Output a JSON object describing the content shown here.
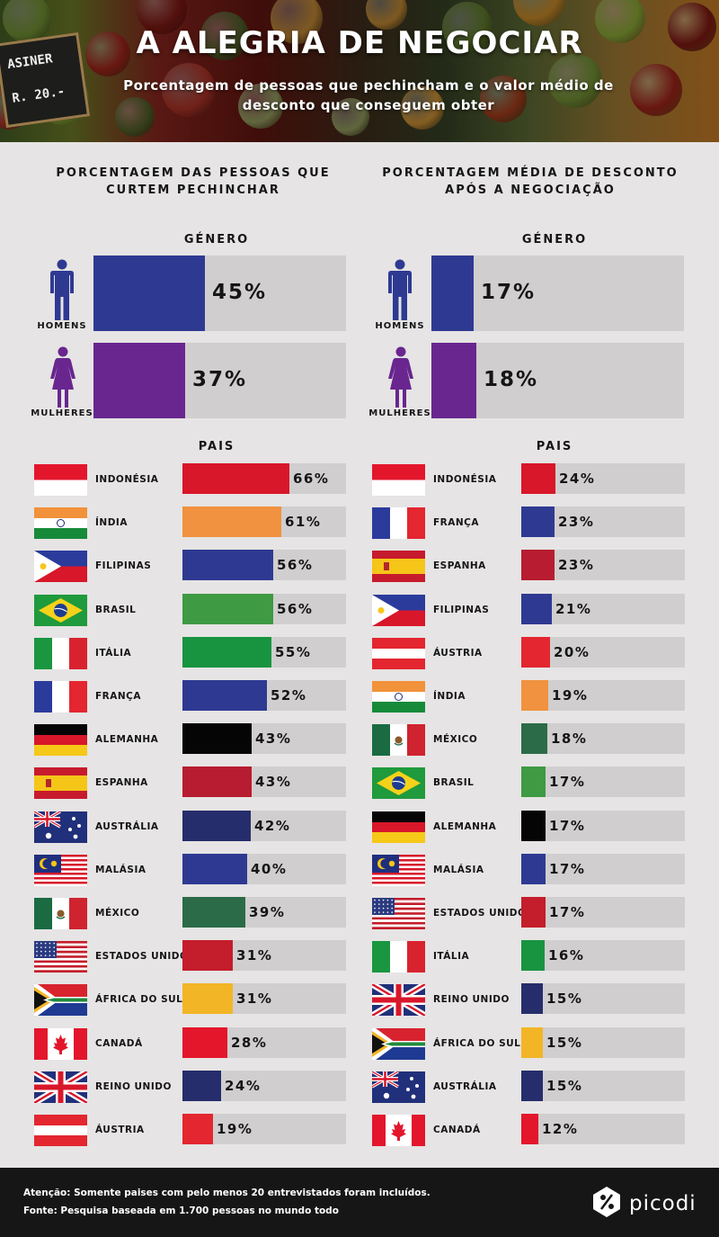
{
  "title": "A ALEGRIA DE NEGOCIAR",
  "subtitle": "Porcentagem de pessoas que pechincham e o valor médio de desconto que conseguem obter",
  "header_sign_text": [
    "ASINER",
    "R. 20.-"
  ],
  "colors": {
    "men": "#2e3a92",
    "women": "#69268f",
    "track": "#d0cece",
    "background": "#e6e4e4",
    "footer": "#161616"
  },
  "chart_data": [
    {
      "type": "bar",
      "title": "PORCENTAGEM DAS PESSOAS QUE CURTEM PECHINCHAR",
      "section_label": "GÉNERO",
      "unit": "%",
      "xlim": [
        0,
        100
      ],
      "categories": [
        "HOMENS",
        "MULHERES"
      ],
      "values": [
        45,
        37
      ],
      "value_labels": [
        "45%",
        "37%"
      ],
      "colors": [
        "#2e3a92",
        "#69268f"
      ],
      "icons": [
        "man-icon",
        "woman-icon"
      ]
    },
    {
      "type": "bar",
      "title": "PORCENTAGEM MÉDIA DE DESCONTO APÓS A NEGOCIAÇÃO",
      "section_label": "GÉNERO",
      "unit": "%",
      "xlim": [
        0,
        100
      ],
      "categories": [
        "HOMENS",
        "MULHERES"
      ],
      "values": [
        17,
        18
      ],
      "value_labels": [
        "17%",
        "18%"
      ],
      "colors": [
        "#2e3a92",
        "#69268f"
      ],
      "icons": [
        "man-icon",
        "woman-icon"
      ]
    },
    {
      "type": "bar",
      "title": "PORCENTAGEM DAS PESSOAS QUE CURTEM PECHINCHAR",
      "section_label": "PAIS",
      "unit": "%",
      "xlim": [
        0,
        100
      ],
      "rows": [
        {
          "country": "INDONÉSIA",
          "flag": "indonesia",
          "value": 66,
          "label": "66%",
          "color": "#d8172a"
        },
        {
          "country": "ÍNDIA",
          "flag": "india",
          "value": 61,
          "label": "61%",
          "color": "#f0923f"
        },
        {
          "country": "FILIPINAS",
          "flag": "philippines",
          "value": 56,
          "label": "56%",
          "color": "#2e3a92"
        },
        {
          "country": "BRASIL",
          "flag": "brazil",
          "value": 56,
          "label": "56%",
          "color": "#3e9a43"
        },
        {
          "country": "ITÁLIA",
          "flag": "italy",
          "value": 55,
          "label": "55%",
          "color": "#189440"
        },
        {
          "country": "FRANÇA",
          "flag": "france",
          "value": 52,
          "label": "52%",
          "color": "#2e3a92"
        },
        {
          "country": "ALEMANHA",
          "flag": "germany",
          "value": 43,
          "label": "43%",
          "color": "#050505"
        },
        {
          "country": "ESPANHA",
          "flag": "spain",
          "value": 43,
          "label": "43%",
          "color": "#b71c30"
        },
        {
          "country": "AUSTRÁLIA",
          "flag": "australia",
          "value": 42,
          "label": "42%",
          "color": "#262d6c"
        },
        {
          "country": "MALÁSIA",
          "flag": "malaysia",
          "value": 40,
          "label": "40%",
          "color": "#2e3a92"
        },
        {
          "country": "MÉXICO",
          "flag": "mexico",
          "value": 39,
          "label": "39%",
          "color": "#2b6b48"
        },
        {
          "country": "ESTADOS UNIDOS",
          "flag": "usa",
          "value": 31,
          "label": "31%",
          "color": "#c41d2b"
        },
        {
          "country": "ÁFRICA DO SUL",
          "flag": "south-africa",
          "value": 31,
          "label": "31%",
          "color": "#f2b526"
        },
        {
          "country": "CANADÁ",
          "flag": "canada",
          "value": 28,
          "label": "28%",
          "color": "#e3162c"
        },
        {
          "country": "REINO UNIDO",
          "flag": "uk",
          "value": 24,
          "label": "24%",
          "color": "#262d6c"
        },
        {
          "country": "ÁUSTRIA",
          "flag": "austria",
          "value": 19,
          "label": "19%",
          "color": "#e3262f"
        }
      ]
    },
    {
      "type": "bar",
      "title": "PORCENTAGEM MÉDIA DE DESCONTO APÓS A NEGOCIAÇÃO",
      "section_label": "PAIS",
      "unit": "%",
      "xlim": [
        0,
        100
      ],
      "rows": [
        {
          "country": "INDONÉSIA",
          "flag": "indonesia",
          "value": 24,
          "label": "24%",
          "color": "#d8172a"
        },
        {
          "country": "FRANÇA",
          "flag": "france",
          "value": 23,
          "label": "23%",
          "color": "#2e3a92"
        },
        {
          "country": "ESPANHA",
          "flag": "spain",
          "value": 23,
          "label": "23%",
          "color": "#b71c30"
        },
        {
          "country": "FILIPINAS",
          "flag": "philippines",
          "value": 21,
          "label": "21%",
          "color": "#2e3a92"
        },
        {
          "country": "ÁUSTRIA",
          "flag": "austria",
          "value": 20,
          "label": "20%",
          "color": "#e3262f"
        },
        {
          "country": "ÍNDIA",
          "flag": "india",
          "value": 19,
          "label": "19%",
          "color": "#f0923f"
        },
        {
          "country": "MÉXICO",
          "flag": "mexico",
          "value": 18,
          "label": "18%",
          "color": "#2b6b48"
        },
        {
          "country": "BRASIL",
          "flag": "brazil",
          "value": 17,
          "label": "17%",
          "color": "#3e9a43"
        },
        {
          "country": "ALEMANHA",
          "flag": "germany",
          "value": 17,
          "label": "17%",
          "color": "#050505"
        },
        {
          "country": "MALÁSIA",
          "flag": "malaysia",
          "value": 17,
          "label": "17%",
          "color": "#2e3a92"
        },
        {
          "country": "ESTADOS UNIDOS",
          "flag": "usa",
          "value": 17,
          "label": "17%",
          "color": "#c41d2b"
        },
        {
          "country": "ITÁLIA",
          "flag": "italy",
          "value": 16,
          "label": "16%",
          "color": "#189440"
        },
        {
          "country": "REINO UNIDO",
          "flag": "uk",
          "value": 15,
          "label": "15%",
          "color": "#262d6c"
        },
        {
          "country": "ÁFRICA DO SUL",
          "flag": "south-africa",
          "value": 15,
          "label": "15%",
          "color": "#f2b526"
        },
        {
          "country": "AUSTRÁLIA",
          "flag": "australia",
          "value": 15,
          "label": "15%",
          "color": "#262d6c"
        },
        {
          "country": "CANADÁ",
          "flag": "canada",
          "value": 12,
          "label": "12%",
          "color": "#e3162c"
        }
      ]
    }
  ],
  "footer": {
    "note": "Atenção: Somente paises com pelo menos 20 entrevistados foram incluídos.",
    "source": "Fonte: Pesquisa baseada em 1.700 pessoas no mundo todo",
    "brand": "picodi",
    "brand_icon": "discount-tag-icon"
  }
}
